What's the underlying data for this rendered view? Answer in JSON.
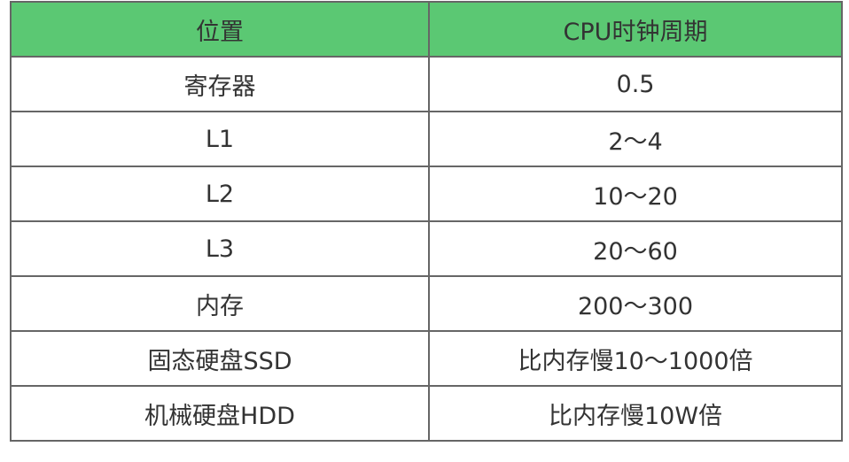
{
  "header": {
    "col1": "位置",
    "col2": "CPU时钟周期",
    "color": "#5bc873"
  },
  "rows": [
    {
      "location": "寄存器",
      "cycles": "0.5"
    },
    {
      "location": "L1",
      "cycles": "2～4"
    },
    {
      "location": "L2",
      "cycles": "10～20"
    },
    {
      "location": "L3",
      "cycles": "20～60"
    },
    {
      "location": "内存",
      "cycles": "200～300"
    },
    {
      "location": "固态硬盘SSD",
      "cycles": "比内存慢10～1000倍"
    },
    {
      "location": "机械硬盘HDD",
      "cycles": "比内存慢10W倍"
    }
  ]
}
